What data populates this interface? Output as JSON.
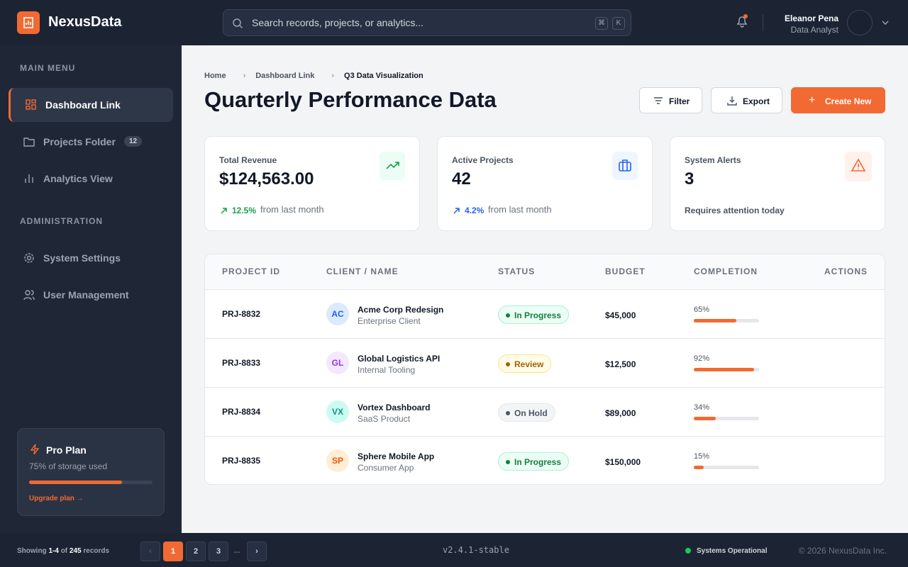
{
  "header": {
    "brand": "NexusData",
    "search_placeholder": "Search records, projects, or analytics...",
    "shortcut": [
      "⌘",
      "K"
    ],
    "user": {
      "name": "Eleanor Pena",
      "role": "Data Analyst"
    }
  },
  "sidebar": {
    "sections": [
      {
        "title": "MAIN MENU",
        "items": [
          {
            "label": "Dashboard Link"
          },
          {
            "label": "Projects Folder",
            "badge": "12"
          },
          {
            "label": "Analytics View"
          }
        ]
      },
      {
        "title": "ADMINISTRATION",
        "items": [
          {
            "label": "System Settings"
          },
          {
            "label": "User Management"
          }
        ]
      }
    ],
    "plan": {
      "title": "Pro Plan",
      "storage": {
        "value": 75,
        "label": "75% of storage used"
      },
      "link": "Upgrade plan"
    }
  },
  "breadcrumb": [
    "Home",
    "Dashboard Link",
    "Q3 Data Visualization"
  ],
  "page_title": "Quarterly Performance Data",
  "actions": [
    "Filter",
    "Export",
    "Create New"
  ],
  "stats": [
    {
      "label": "Total Revenue",
      "value": "$124,563.00",
      "change": "12.5%",
      "note": "from last month"
    },
    {
      "label": "Active Projects",
      "value": "42",
      "change": "4.2%",
      "note": "from last month"
    },
    {
      "label": "System Alerts",
      "value": "3",
      "note": "Requires attention today"
    }
  ],
  "table": {
    "columns": [
      "PROJECT ID",
      "CLIENT / NAME",
      "STATUS",
      "BUDGET",
      "COMPLETION",
      "ACTIONS"
    ],
    "rows": [
      {
        "id": "PRJ-8832",
        "initials": "AC",
        "name": "Acme Corp Redesign",
        "type": "Enterprise Client",
        "status": "In Progress",
        "budget": "$45,000",
        "completion": {
          "value": 65,
          "label": "65%"
        }
      },
      {
        "id": "PRJ-8833",
        "initials": "GL",
        "name": "Global Logistics API",
        "type": "Internal Tooling",
        "status": "Review",
        "budget": "$12,500",
        "completion": {
          "value": 92,
          "label": "92%"
        }
      },
      {
        "id": "PRJ-8834",
        "initials": "VX",
        "name": "Vortex Dashboard",
        "type": "SaaS Product",
        "status": "On Hold",
        "budget": "$89,000",
        "completion": {
          "value": 34,
          "label": "34%"
        }
      },
      {
        "id": "PRJ-8835",
        "initials": "SP",
        "name": "Sphere Mobile App",
        "type": "Consumer App",
        "status": "In Progress",
        "budget": "$150,000",
        "completion": {
          "value": 15,
          "label": "15%"
        }
      }
    ]
  },
  "footer": {
    "showing": [
      "Showing",
      "1-4",
      "of",
      "245",
      "records"
    ],
    "pages": [
      "1",
      "2",
      "3",
      "..."
    ],
    "version": "v2.4.1-stable",
    "status": "Systems Operational",
    "copyright": "© 2026 NexusData Inc."
  }
}
